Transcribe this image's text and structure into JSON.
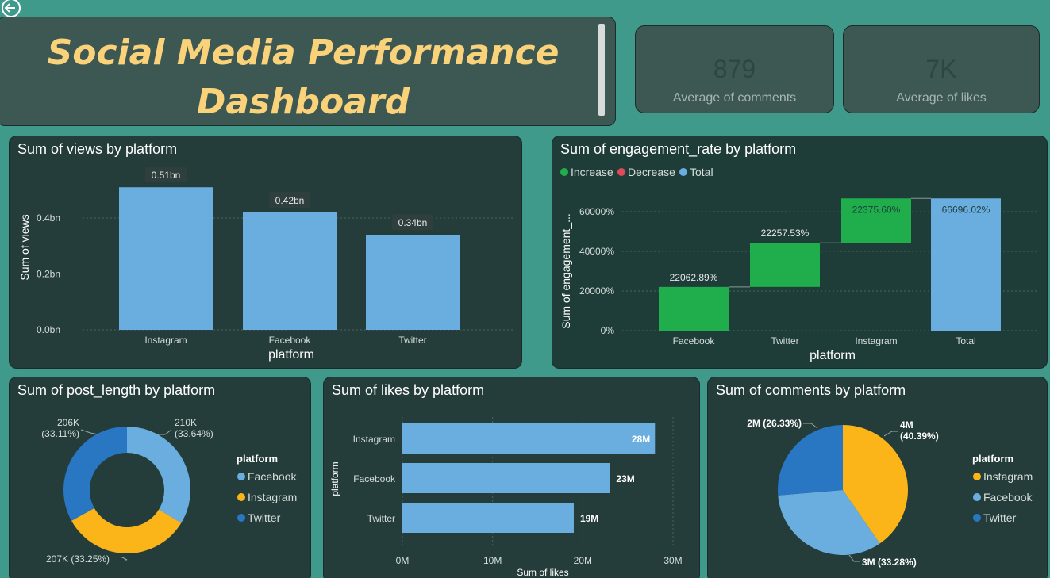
{
  "header": {
    "title_line1": "Social Media Performance",
    "title_line2": "Dashboard",
    "back_icon": "back-arrow-icon"
  },
  "cards": [
    {
      "value": "879",
      "label": "Average of comments"
    },
    {
      "value": "7K",
      "label": "Average of likes"
    }
  ],
  "colors": {
    "bar_blue": "#6aaee0",
    "increase": "#1fae4b",
    "decrease": "#e0495a",
    "total": "#6aaee0",
    "pie_yellow": "#fbb519",
    "pie_light_blue": "#6aaee0",
    "pie_dark_blue": "#2976c2"
  },
  "chart_data": [
    {
      "type": "bar",
      "title": "Sum of views by platform",
      "xlabel": "platform",
      "ylabel": "Sum of views",
      "categories": [
        "Instagram",
        "Facebook",
        "Twitter"
      ],
      "values": [
        0.51,
        0.42,
        0.34
      ],
      "data_labels": [
        "0.51bn",
        "0.42bn",
        "0.34bn"
      ],
      "y_ticks": [
        0,
        0.2,
        0.4
      ],
      "y_tick_labels": [
        "0.0bn",
        "0.2bn",
        "0.4bn"
      ],
      "ylim": [
        0,
        0.55
      ],
      "grid": true
    },
    {
      "type": "waterfall",
      "title": "Sum of engagement_rate by platform",
      "xlabel": "platform",
      "ylabel": "Sum of engagement_...",
      "legend": [
        "Increase",
        "Decrease",
        "Total"
      ],
      "categories": [
        "Facebook",
        "Twitter",
        "Instagram",
        "Total"
      ],
      "values": [
        22062.89,
        22257.53,
        22375.6,
        66696.02
      ],
      "kinds": [
        "increase",
        "increase",
        "increase",
        "total"
      ],
      "data_labels": [
        "22062.89%",
        "22257.53%",
        "22375.60%",
        "66696.02%"
      ],
      "y_ticks": [
        0,
        20000,
        40000,
        60000
      ],
      "y_tick_labels": [
        "0%",
        "20000%",
        "40000%",
        "60000%"
      ],
      "ylim": [
        0,
        70000
      ],
      "grid": true
    },
    {
      "type": "pie",
      "subtype": "donut",
      "title": "Sum of post_length by platform",
      "legend_title": "platform",
      "legend": [
        "Facebook",
        "Instagram",
        "Twitter"
      ],
      "values": [
        210,
        207,
        206
      ],
      "data_labels": [
        "210K (33.64%)",
        "207K (33.25%)",
        "206K (33.11%)"
      ]
    },
    {
      "type": "bar",
      "orientation": "horizontal",
      "title": "Sum of likes by platform",
      "xlabel": "Sum of likes",
      "ylabel": "platform",
      "categories": [
        "Instagram",
        "Facebook",
        "Twitter"
      ],
      "values": [
        28,
        23,
        19
      ],
      "data_labels": [
        "28M",
        "23M",
        "19M"
      ],
      "x_ticks": [
        0,
        10,
        20,
        30
      ],
      "x_tick_labels": [
        "0M",
        "10M",
        "20M",
        "30M"
      ],
      "xlim": [
        0,
        30
      ],
      "grid": true
    },
    {
      "type": "pie",
      "title": "Sum of comments by platform",
      "legend_title": "platform",
      "legend": [
        "Instagram",
        "Facebook",
        "Twitter"
      ],
      "values": [
        40.39,
        33.28,
        26.33
      ],
      "data_labels": [
        "4M (40.39%)",
        "3M (33.28%)",
        "2M (26.33%)"
      ]
    }
  ]
}
